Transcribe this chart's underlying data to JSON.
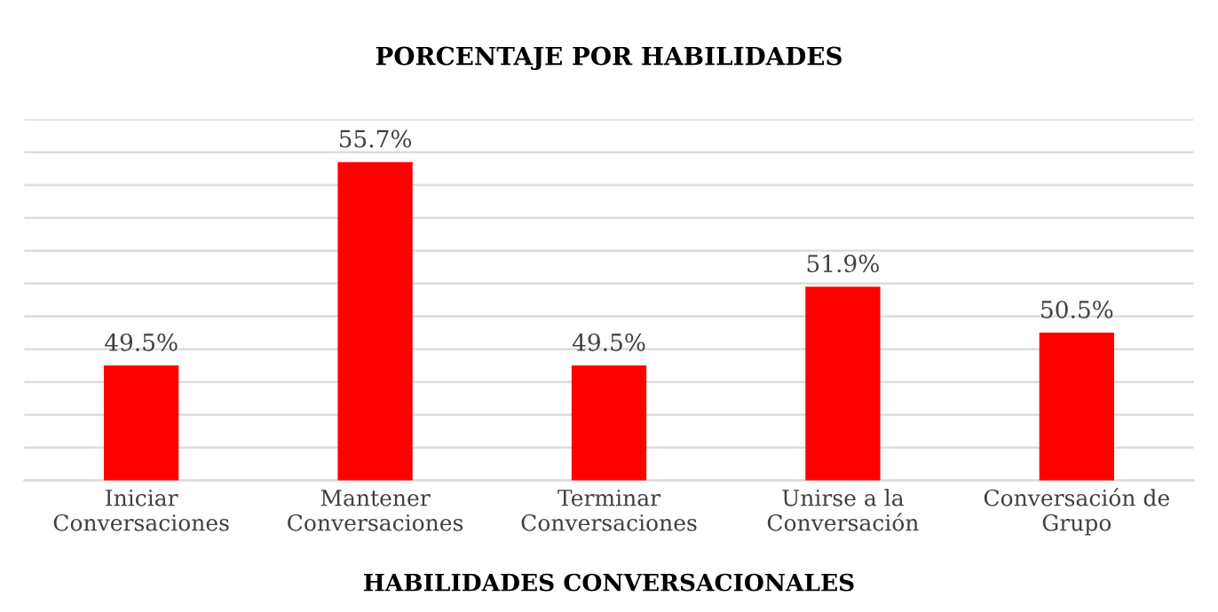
{
  "chart_data": {
    "type": "bar",
    "title": "PORCENTAJE POR HABILIDADES",
    "xlabel": "HABILIDADES CONVERSACIONALES",
    "categories": [
      "Iniciar\nConversaciones",
      "Mantener\nConversaciones",
      "Terminar\nConversaciones",
      "Unirse a la\nConversación",
      "Conversación de\nGrupo"
    ],
    "values": [
      49.5,
      55.7,
      49.5,
      51.9,
      50.5
    ],
    "value_labels": [
      "49.5%",
      "55.7%",
      "49.5%",
      "51.9%",
      "50.5%"
    ],
    "color": "#ff0000",
    "ylim": [
      46,
      57
    ],
    "yticks": [
      {
        "value": 46,
        "label": null
      },
      {
        "value": 47,
        "label": null
      },
      {
        "value": 48,
        "label": null
      },
      {
        "value": 49,
        "label": null
      },
      {
        "value": 50,
        "label": null
      },
      {
        "value": 51,
        "label": null
      },
      {
        "value": 52,
        "label": null
      },
      {
        "value": 53,
        "label": null
      },
      {
        "value": 54,
        "label": null
      },
      {
        "value": 55,
        "label": null
      },
      {
        "value": 56,
        "label": null
      },
      {
        "value": 57,
        "label": null
      }
    ],
    "tick_labels": "x",
    "grid": "y",
    "legend": false
  }
}
